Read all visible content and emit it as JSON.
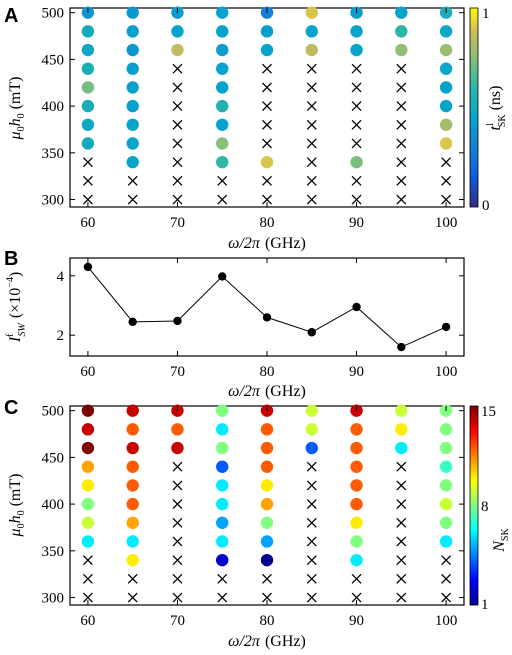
{
  "chart_data": [
    {
      "panel": "A",
      "type": "scatter",
      "xlabel_parts": {
        "main": "ω/2π",
        "unit": "(GHz)"
      },
      "ylabel_parts": {
        "sym": "μ",
        "sub1": "0",
        "sym2": "h",
        "sub2": "0",
        "unit": "(mT)"
      },
      "x_ticks": [
        "60",
        "70",
        "80",
        "90",
        "100"
      ],
      "y_ticks": [
        "300",
        "350",
        "400",
        "450",
        "500"
      ],
      "xlim": [
        58,
        102
      ],
      "ylim": [
        292,
        505
      ],
      "x": [
        60,
        65,
        70,
        75,
        80,
        85,
        90,
        95,
        100
      ],
      "y": [
        300,
        320,
        340,
        360,
        380,
        400,
        420,
        440,
        460,
        480,
        500
      ],
      "colorbar": {
        "label_main": "t",
        "label_sup": "l",
        "label_sub": "SK",
        "label_unit": "(ns)",
        "min_label": "0",
        "max_label": "1",
        "cmap": "parula"
      },
      "values": [
        [
          null,
          null,
          null,
          0.5,
          0.48,
          0.52,
          0.72,
          0.52,
          0.47,
          0.5,
          0.4
        ],
        [
          null,
          null,
          0.45,
          0.45,
          0.45,
          0.43,
          0.43,
          0.43,
          0.4,
          0.43,
          0.4
        ],
        [
          null,
          null,
          null,
          null,
          null,
          null,
          null,
          null,
          0.85,
          0.45,
          0.42
        ],
        [
          null,
          null,
          0.6,
          0.75,
          0.45,
          0.55,
          0.45,
          0.45,
          0.43,
          0.45,
          0.45
        ],
        [
          null,
          null,
          0.9,
          null,
          null,
          null,
          null,
          null,
          0.45,
          0.42,
          0.3
        ],
        [
          null,
          null,
          null,
          null,
          null,
          null,
          null,
          null,
          0.85,
          0.45,
          0.9
        ],
        [
          null,
          null,
          0.73,
          null,
          null,
          null,
          null,
          null,
          0.45,
          0.45,
          0.42
        ],
        [
          null,
          null,
          null,
          null,
          null,
          null,
          null,
          null,
          0.77,
          0.6,
          0.45
        ],
        [
          null,
          null,
          null,
          0.9,
          0.8,
          0.45,
          0.45,
          0.47,
          0.78,
          0.48,
          0.53
        ]
      ]
    },
    {
      "panel": "B",
      "type": "line",
      "xlabel_parts": {
        "main": "ω/2π",
        "unit": "(GHz)"
      },
      "ylabel_parts": {
        "main": "I",
        "sup": "f",
        "sub": "SW",
        "unit_pre": "(×10",
        "unit_exp": "−4",
        "unit_post": ")"
      },
      "x_ticks": [
        "60",
        "70",
        "80",
        "90",
        "100"
      ],
      "y_ticks": [
        "2",
        "4"
      ],
      "xlim": [
        58,
        102
      ],
      "ylim": [
        1.3,
        4.6
      ],
      "x": [
        60,
        65,
        70,
        75,
        80,
        85,
        90,
        95,
        100
      ],
      "y": [
        4.3,
        2.45,
        2.48,
        3.98,
        2.6,
        2.1,
        2.95,
        1.6,
        2.28
      ]
    },
    {
      "panel": "C",
      "type": "scatter",
      "xlabel_parts": {
        "main": "ω/2π",
        "unit": "(GHz)"
      },
      "ylabel_parts": {
        "sym": "μ",
        "sub1": "0",
        "sym2": "h",
        "sub2": "0",
        "unit": "(mT)"
      },
      "x_ticks": [
        "60",
        "70",
        "80",
        "90",
        "100"
      ],
      "y_ticks": [
        "300",
        "350",
        "400",
        "450",
        "500"
      ],
      "xlim": [
        58,
        102
      ],
      "ylim": [
        292,
        505
      ],
      "x": [
        60,
        65,
        70,
        75,
        80,
        85,
        90,
        95,
        100
      ],
      "y": [
        300,
        320,
        340,
        360,
        380,
        400,
        420,
        440,
        460,
        480,
        500
      ],
      "colorbar": {
        "label_main": "N",
        "label_sub": "SK",
        "min_label": "1",
        "max_label": "15",
        "mid_label": "8",
        "cmap": "jet"
      },
      "values": [
        [
          null,
          null,
          null,
          6,
          9,
          8,
          10,
          11,
          15,
          14,
          15
        ],
        [
          null,
          null,
          10,
          6,
          11,
          12,
          12,
          12,
          14,
          12,
          14
        ],
        [
          null,
          null,
          null,
          null,
          null,
          null,
          null,
          null,
          14,
          12,
          14
        ],
        [
          null,
          null,
          2,
          6,
          5,
          6,
          6,
          4,
          8,
          6,
          8
        ],
        [
          null,
          null,
          1,
          5,
          8,
          11,
          10,
          12,
          12,
          12,
          14
        ],
        [
          null,
          null,
          null,
          null,
          null,
          null,
          null,
          null,
          4,
          9,
          9
        ],
        [
          null,
          null,
          6,
          8,
          10,
          12,
          12,
          12,
          12,
          12,
          14
        ],
        [
          null,
          null,
          null,
          null,
          null,
          null,
          null,
          null,
          6,
          10,
          9
        ],
        [
          null,
          null,
          null,
          6,
          8,
          9,
          8,
          7,
          8,
          8,
          8
        ]
      ]
    }
  ],
  "panel_labels": [
    "A",
    "B",
    "C"
  ]
}
